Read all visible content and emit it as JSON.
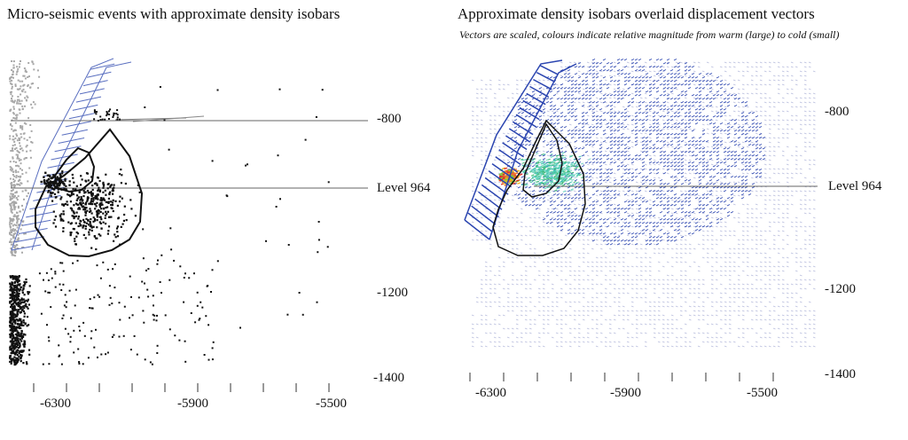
{
  "left_panel": {
    "title": "Micro-seismic events with approximate density isobars",
    "level_label": "Level 964",
    "y_ticks": [
      "-800",
      "-1200",
      "-1400"
    ],
    "x_ticks": [
      "-6300",
      "-5900",
      "-5500"
    ]
  },
  "right_panel": {
    "title": "Approximate density isobars overlaid displacement vectors",
    "subtitle": "Vectors are scaled, colours indicate relative magnitude from warm (large) to cold (small)",
    "level_label": "Level 964",
    "y_ticks": [
      "-800",
      "-1200",
      "-1400"
    ],
    "x_ticks": [
      "-6300",
      "-5900",
      "-5500"
    ]
  },
  "colors": {
    "events": "#111111",
    "grey_events": "#a8a8a8",
    "hatch": "#5a6fc0",
    "vectors_cold": "#2b45b0",
    "vectors_light": "#b9bede",
    "isobar": "#111111",
    "level_line": "#666666"
  }
}
